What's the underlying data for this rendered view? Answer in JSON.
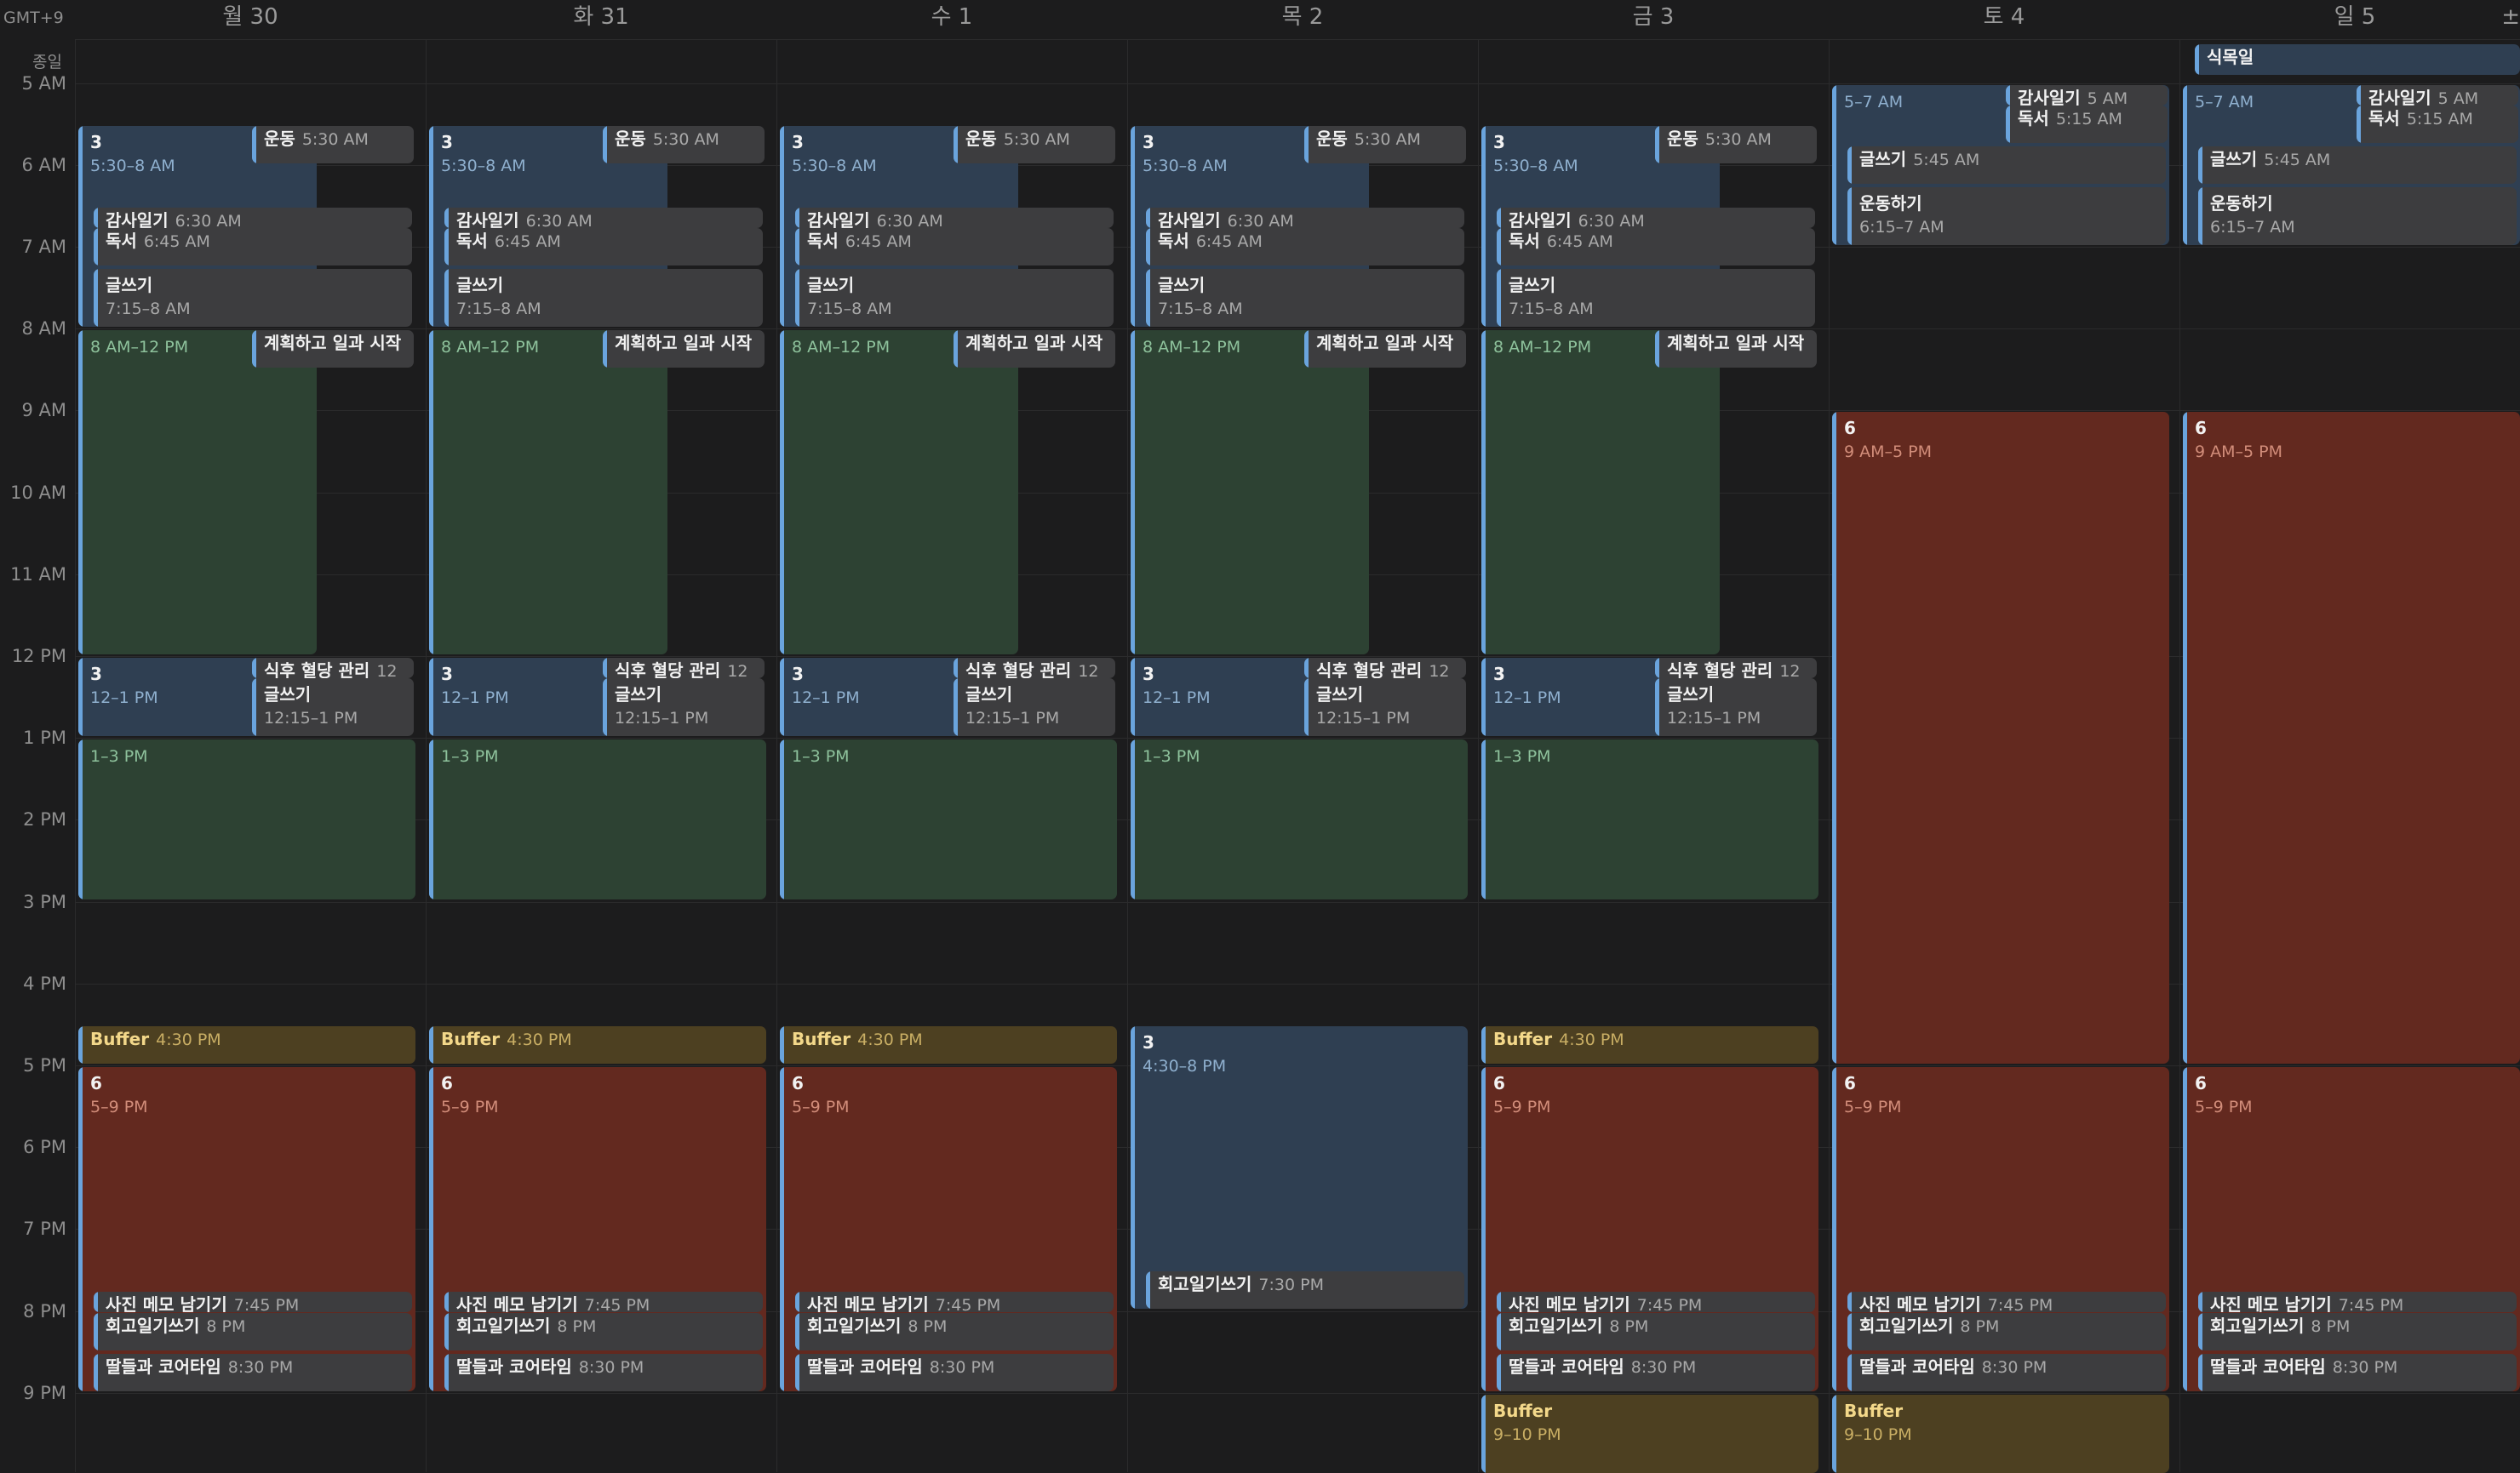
{
  "timezone_label": "GMT+9",
  "all_day_label": "종일",
  "plus_label": "±",
  "days": [
    {
      "label": "월 30"
    },
    {
      "label": "화 31"
    },
    {
      "label": "수 1"
    },
    {
      "label": "목 2"
    },
    {
      "label": "금 3"
    },
    {
      "label": "토 4"
    },
    {
      "label": "일 5"
    }
  ],
  "hours": [
    "5 AM",
    "6 AM",
    "7 AM",
    "8 AM",
    "9 AM",
    "10 AM",
    "11 AM",
    "12 PM",
    "1 PM",
    "2 PM",
    "3 PM",
    "4 PM",
    "5 PM",
    "6 PM",
    "7 PM",
    "8 PM",
    "9 PM"
  ],
  "all_day_events": [
    {
      "day": 6,
      "title": "식목일"
    }
  ],
  "events": [
    {
      "day": 0,
      "start": 5.5,
      "end": 8,
      "lane": 0,
      "lanes": 2,
      "color": "blue",
      "title": "3",
      "time": "5:30–8 AM",
      "style": "block"
    },
    {
      "day": 0,
      "start": 5.5,
      "end": 6,
      "lane": 1,
      "lanes": 2,
      "color": "gray",
      "title": "운동",
      "time": "5:30 AM",
      "style": "compact"
    },
    {
      "day": 0,
      "start": 6.5,
      "end": 6.75,
      "lane": "in",
      "color": "gray",
      "title": "감사일기",
      "time": "6:30 AM",
      "style": "compact"
    },
    {
      "day": 0,
      "start": 6.75,
      "end": 7.25,
      "lane": "in",
      "color": "gray",
      "title": "독서",
      "time": "6:45 AM",
      "style": "compact"
    },
    {
      "day": 0,
      "start": 7.25,
      "end": 8,
      "lane": "in",
      "color": "gray",
      "title": "글쓰기",
      "time": "7:15–8 AM",
      "style": "block"
    },
    {
      "day": 0,
      "start": 8,
      "end": 12,
      "lane": 0,
      "lanes": 2,
      "color": "green",
      "title": "",
      "time": "8 AM–12 PM",
      "style": "block"
    },
    {
      "day": 0,
      "start": 8,
      "end": 8.5,
      "lane": 1,
      "lanes": 2,
      "color": "gray",
      "title": "계획하고 일과 시작",
      "time": "",
      "style": "compact"
    },
    {
      "day": 0,
      "start": 12,
      "end": 13,
      "lane": 0,
      "lanes": 2,
      "color": "blue",
      "title": "3",
      "time": "12–1 PM",
      "style": "block"
    },
    {
      "day": 0,
      "start": 12,
      "end": 12.25,
      "lane": 1,
      "lanes": 2,
      "color": "gray",
      "title": "식후 혈당 관리",
      "time": "12",
      "style": "compact"
    },
    {
      "day": 0,
      "start": 12.25,
      "end": 13,
      "lane": 1,
      "lanes": 2,
      "color": "gray",
      "title": "글쓰기",
      "time": "12:15–1 PM",
      "style": "block"
    },
    {
      "day": 0,
      "start": 13,
      "end": 15,
      "lane": 0,
      "lanes": 1,
      "color": "green",
      "title": "",
      "time": "1–3 PM",
      "style": "block"
    },
    {
      "day": 0,
      "start": 16.5,
      "end": 17,
      "lane": 0,
      "lanes": 1,
      "color": "yellow",
      "title": "Buffer",
      "time": "4:30 PM",
      "style": "compact"
    },
    {
      "day": 0,
      "start": 17,
      "end": 21,
      "lane": 0,
      "lanes": 1,
      "color": "red",
      "title": "6",
      "time": "5–9 PM",
      "style": "block"
    },
    {
      "day": 0,
      "start": 19.75,
      "end": 20,
      "lane": "in",
      "color": "gray",
      "title": "사진 메모 남기기",
      "time": "7:45 PM",
      "style": "compact"
    },
    {
      "day": 0,
      "start": 20,
      "end": 20.5,
      "lane": "in",
      "color": "gray",
      "title": "회고일기쓰기",
      "time": "8 PM",
      "style": "compact"
    },
    {
      "day": 0,
      "start": 20.5,
      "end": 21,
      "lane": "in",
      "color": "gray",
      "title": "딸들과 코어타임",
      "time": "8:30 PM",
      "style": "compact"
    },
    {
      "day": 1,
      "start": 5.5,
      "end": 8,
      "lane": 0,
      "lanes": 2,
      "color": "blue",
      "title": "3",
      "time": "5:30–8 AM",
      "style": "block"
    },
    {
      "day": 1,
      "start": 5.5,
      "end": 6,
      "lane": 1,
      "lanes": 2,
      "color": "gray",
      "title": "운동",
      "time": "5:30 AM",
      "style": "compact"
    },
    {
      "day": 1,
      "start": 6.5,
      "end": 6.75,
      "lane": "in",
      "color": "gray",
      "title": "감사일기",
      "time": "6:30 AM",
      "style": "compact"
    },
    {
      "day": 1,
      "start": 6.75,
      "end": 7.25,
      "lane": "in",
      "color": "gray",
      "title": "독서",
      "time": "6:45 AM",
      "style": "compact"
    },
    {
      "day": 1,
      "start": 7.25,
      "end": 8,
      "lane": "in",
      "color": "gray",
      "title": "글쓰기",
      "time": "7:15–8 AM",
      "style": "block"
    },
    {
      "day": 1,
      "start": 8,
      "end": 12,
      "lane": 0,
      "lanes": 2,
      "color": "green",
      "title": "",
      "time": "8 AM–12 PM",
      "style": "block"
    },
    {
      "day": 1,
      "start": 8,
      "end": 8.5,
      "lane": 1,
      "lanes": 2,
      "color": "gray",
      "title": "계획하고 일과 시작",
      "time": "",
      "style": "compact"
    },
    {
      "day": 1,
      "start": 12,
      "end": 13,
      "lane": 0,
      "lanes": 2,
      "color": "blue",
      "title": "3",
      "time": "12–1 PM",
      "style": "block"
    },
    {
      "day": 1,
      "start": 12,
      "end": 12.25,
      "lane": 1,
      "lanes": 2,
      "color": "gray",
      "title": "식후 혈당 관리",
      "time": "12",
      "style": "compact"
    },
    {
      "day": 1,
      "start": 12.25,
      "end": 13,
      "lane": 1,
      "lanes": 2,
      "color": "gray",
      "title": "글쓰기",
      "time": "12:15–1 PM",
      "style": "block"
    },
    {
      "day": 1,
      "start": 13,
      "end": 15,
      "lane": 0,
      "lanes": 1,
      "color": "green",
      "title": "",
      "time": "1–3 PM",
      "style": "block"
    },
    {
      "day": 1,
      "start": 16.5,
      "end": 17,
      "lane": 0,
      "lanes": 1,
      "color": "yellow",
      "title": "Buffer",
      "time": "4:30 PM",
      "style": "compact"
    },
    {
      "day": 1,
      "start": 17,
      "end": 21,
      "lane": 0,
      "lanes": 1,
      "color": "red",
      "title": "6",
      "time": "5–9 PM",
      "style": "block"
    },
    {
      "day": 1,
      "start": 19.75,
      "end": 20,
      "lane": "in",
      "color": "gray",
      "title": "사진 메모 남기기",
      "time": "7:45 PM",
      "style": "compact"
    },
    {
      "day": 1,
      "start": 20,
      "end": 20.5,
      "lane": "in",
      "color": "gray",
      "title": "회고일기쓰기",
      "time": "8 PM",
      "style": "compact"
    },
    {
      "day": 1,
      "start": 20.5,
      "end": 21,
      "lane": "in",
      "color": "gray",
      "title": "딸들과 코어타임",
      "time": "8:30 PM",
      "style": "compact"
    },
    {
      "day": 2,
      "start": 5.5,
      "end": 8,
      "lane": 0,
      "lanes": 2,
      "color": "blue",
      "title": "3",
      "time": "5:30–8 AM",
      "style": "block"
    },
    {
      "day": 2,
      "start": 5.5,
      "end": 6,
      "lane": 1,
      "lanes": 2,
      "color": "gray",
      "title": "운동",
      "time": "5:30 AM",
      "style": "compact"
    },
    {
      "day": 2,
      "start": 6.5,
      "end": 6.75,
      "lane": "in",
      "color": "gray",
      "title": "감사일기",
      "time": "6:30 AM",
      "style": "compact"
    },
    {
      "day": 2,
      "start": 6.75,
      "end": 7.25,
      "lane": "in",
      "color": "gray",
      "title": "독서",
      "time": "6:45 AM",
      "style": "compact"
    },
    {
      "day": 2,
      "start": 7.25,
      "end": 8,
      "lane": "in",
      "color": "gray",
      "title": "글쓰기",
      "time": "7:15–8 AM",
      "style": "block"
    },
    {
      "day": 2,
      "start": 8,
      "end": 12,
      "lane": 0,
      "lanes": 2,
      "color": "green",
      "title": "",
      "time": "8 AM–12 PM",
      "style": "block"
    },
    {
      "day": 2,
      "start": 8,
      "end": 8.5,
      "lane": 1,
      "lanes": 2,
      "color": "gray",
      "title": "계획하고 일과 시작",
      "time": "",
      "style": "compact"
    },
    {
      "day": 2,
      "start": 12,
      "end": 13,
      "lane": 0,
      "lanes": 2,
      "color": "blue",
      "title": "3",
      "time": "12–1 PM",
      "style": "block"
    },
    {
      "day": 2,
      "start": 12,
      "end": 12.25,
      "lane": 1,
      "lanes": 2,
      "color": "gray",
      "title": "식후 혈당 관리",
      "time": "12",
      "style": "compact"
    },
    {
      "day": 2,
      "start": 12.25,
      "end": 13,
      "lane": 1,
      "lanes": 2,
      "color": "gray",
      "title": "글쓰기",
      "time": "12:15–1 PM",
      "style": "block"
    },
    {
      "day": 2,
      "start": 13,
      "end": 15,
      "lane": 0,
      "lanes": 1,
      "color": "green",
      "title": "",
      "time": "1–3 PM",
      "style": "block"
    },
    {
      "day": 2,
      "start": 16.5,
      "end": 17,
      "lane": 0,
      "lanes": 1,
      "color": "yellow",
      "title": "Buffer",
      "time": "4:30 PM",
      "style": "compact"
    },
    {
      "day": 2,
      "start": 17,
      "end": 21,
      "lane": 0,
      "lanes": 1,
      "color": "red",
      "title": "6",
      "time": "5–9 PM",
      "style": "block"
    },
    {
      "day": 2,
      "start": 19.75,
      "end": 20,
      "lane": "in",
      "color": "gray",
      "title": "사진 메모 남기기",
      "time": "7:45 PM",
      "style": "compact"
    },
    {
      "day": 2,
      "start": 20,
      "end": 20.5,
      "lane": "in",
      "color": "gray",
      "title": "회고일기쓰기",
      "time": "8 PM",
      "style": "compact"
    },
    {
      "day": 2,
      "start": 20.5,
      "end": 21,
      "lane": "in",
      "color": "gray",
      "title": "딸들과 코어타임",
      "time": "8:30 PM",
      "style": "compact"
    },
    {
      "day": 3,
      "start": 5.5,
      "end": 8,
      "lane": 0,
      "lanes": 2,
      "color": "blue",
      "title": "3",
      "time": "5:30–8 AM",
      "style": "block"
    },
    {
      "day": 3,
      "start": 5.5,
      "end": 6,
      "lane": 1,
      "lanes": 2,
      "color": "gray",
      "title": "운동",
      "time": "5:30 AM",
      "style": "compact"
    },
    {
      "day": 3,
      "start": 6.5,
      "end": 6.75,
      "lane": "in",
      "color": "gray",
      "title": "감사일기",
      "time": "6:30 AM",
      "style": "compact"
    },
    {
      "day": 3,
      "start": 6.75,
      "end": 7.25,
      "lane": "in",
      "color": "gray",
      "title": "독서",
      "time": "6:45 AM",
      "style": "compact"
    },
    {
      "day": 3,
      "start": 7.25,
      "end": 8,
      "lane": "in",
      "color": "gray",
      "title": "글쓰기",
      "time": "7:15–8 AM",
      "style": "block"
    },
    {
      "day": 3,
      "start": 8,
      "end": 12,
      "lane": 0,
      "lanes": 2,
      "color": "green",
      "title": "",
      "time": "8 AM–12 PM",
      "style": "block"
    },
    {
      "day": 3,
      "start": 8,
      "end": 8.5,
      "lane": 1,
      "lanes": 2,
      "color": "gray",
      "title": "계획하고 일과 시작",
      "time": "",
      "style": "compact"
    },
    {
      "day": 3,
      "start": 12,
      "end": 13,
      "lane": 0,
      "lanes": 2,
      "color": "blue",
      "title": "3",
      "time": "12–1 PM",
      "style": "block"
    },
    {
      "day": 3,
      "start": 12,
      "end": 12.25,
      "lane": 1,
      "lanes": 2,
      "color": "gray",
      "title": "식후 혈당 관리",
      "time": "12",
      "style": "compact"
    },
    {
      "day": 3,
      "start": 12.25,
      "end": 13,
      "lane": 1,
      "lanes": 2,
      "color": "gray",
      "title": "글쓰기",
      "time": "12:15–1 PM",
      "style": "block"
    },
    {
      "day": 3,
      "start": 13,
      "end": 15,
      "lane": 0,
      "lanes": 1,
      "color": "green",
      "title": "",
      "time": "1–3 PM",
      "style": "block"
    },
    {
      "day": 3,
      "start": 16.5,
      "end": 20,
      "lane": 0,
      "lanes": 1,
      "color": "blue",
      "title": "3",
      "time": "4:30–8 PM",
      "style": "block"
    },
    {
      "day": 3,
      "start": 19.5,
      "end": 20,
      "lane": "in",
      "color": "gray",
      "title": "회고일기쓰기",
      "time": "7:30 PM",
      "style": "compact"
    },
    {
      "day": 4,
      "start": 5.5,
      "end": 8,
      "lane": 0,
      "lanes": 2,
      "color": "blue",
      "title": "3",
      "time": "5:30–8 AM",
      "style": "block"
    },
    {
      "day": 4,
      "start": 5.5,
      "end": 6,
      "lane": 1,
      "lanes": 2,
      "color": "gray",
      "title": "운동",
      "time": "5:30 AM",
      "style": "compact"
    },
    {
      "day": 4,
      "start": 6.5,
      "end": 6.75,
      "lane": "in",
      "color": "gray",
      "title": "감사일기",
      "time": "6:30 AM",
      "style": "compact"
    },
    {
      "day": 4,
      "start": 6.75,
      "end": 7.25,
      "lane": "in",
      "color": "gray",
      "title": "독서",
      "time": "6:45 AM",
      "style": "compact"
    },
    {
      "day": 4,
      "start": 7.25,
      "end": 8,
      "lane": "in",
      "color": "gray",
      "title": "글쓰기",
      "time": "7:15–8 AM",
      "style": "block"
    },
    {
      "day": 4,
      "start": 8,
      "end": 12,
      "lane": 0,
      "lanes": 2,
      "color": "green",
      "title": "",
      "time": "8 AM–12 PM",
      "style": "block"
    },
    {
      "day": 4,
      "start": 8,
      "end": 8.5,
      "lane": 1,
      "lanes": 2,
      "color": "gray",
      "title": "계획하고 일과 시작",
      "time": "",
      "style": "compact"
    },
    {
      "day": 4,
      "start": 12,
      "end": 13,
      "lane": 0,
      "lanes": 2,
      "color": "blue",
      "title": "3",
      "time": "12–1 PM",
      "style": "block"
    },
    {
      "day": 4,
      "start": 12,
      "end": 12.25,
      "lane": 1,
      "lanes": 2,
      "color": "gray",
      "title": "식후 혈당 관리",
      "time": "12",
      "style": "compact"
    },
    {
      "day": 4,
      "start": 12.25,
      "end": 13,
      "lane": 1,
      "lanes": 2,
      "color": "gray",
      "title": "글쓰기",
      "time": "12:15–1 PM",
      "style": "block"
    },
    {
      "day": 4,
      "start": 13,
      "end": 15,
      "lane": 0,
      "lanes": 1,
      "color": "green",
      "title": "",
      "time": "1–3 PM",
      "style": "block"
    },
    {
      "day": 4,
      "start": 16.5,
      "end": 17,
      "lane": 0,
      "lanes": 1,
      "color": "yellow",
      "title": "Buffer",
      "time": "4:30 PM",
      "style": "compact"
    },
    {
      "day": 4,
      "start": 17,
      "end": 21,
      "lane": 0,
      "lanes": 1,
      "color": "red",
      "title": "6",
      "time": "5–9 PM",
      "style": "block"
    },
    {
      "day": 4,
      "start": 19.75,
      "end": 20,
      "lane": "in",
      "color": "gray",
      "title": "사진 메모 남기기",
      "time": "7:45 PM",
      "style": "compact"
    },
    {
      "day": 4,
      "start": 20,
      "end": 20.5,
      "lane": "in",
      "color": "gray",
      "title": "회고일기쓰기",
      "time": "8 PM",
      "style": "compact"
    },
    {
      "day": 4,
      "start": 20.5,
      "end": 21,
      "lane": "in",
      "color": "gray",
      "title": "딸들과 코어타임",
      "time": "8:30 PM",
      "style": "compact"
    },
    {
      "day": 4,
      "start": 21,
      "end": 22,
      "lane": 0,
      "lanes": 1,
      "color": "yellow",
      "title": "Buffer",
      "time": "9–10 PM",
      "style": "block"
    },
    {
      "day": 5,
      "start": 5,
      "end": 7,
      "lane": 0,
      "lanes": 1,
      "color": "blue",
      "title": "",
      "time": "5–7 AM",
      "style": "block"
    },
    {
      "day": 5,
      "start": 5,
      "end": 5.25,
      "lane": "right",
      "color": "gray",
      "title": "감사일기",
      "time": "5 AM",
      "style": "compact"
    },
    {
      "day": 5,
      "start": 5.25,
      "end": 5.75,
      "lane": "right",
      "color": "gray",
      "title": "독서",
      "time": "5:15 AM",
      "style": "compact"
    },
    {
      "day": 5,
      "start": 5.75,
      "end": 6.25,
      "lane": "in",
      "color": "gray",
      "title": "글쓰기",
      "time": "5:45 AM",
      "style": "compact"
    },
    {
      "day": 5,
      "start": 6.25,
      "end": 7,
      "lane": "in",
      "color": "gray",
      "title": "운동하기",
      "time": "6:15–7 AM",
      "style": "block"
    },
    {
      "day": 5,
      "start": 9,
      "end": 17,
      "lane": 0,
      "lanes": 1,
      "color": "red",
      "title": "6",
      "time": "9 AM–5 PM",
      "style": "block"
    },
    {
      "day": 5,
      "start": 17,
      "end": 21,
      "lane": 0,
      "lanes": 1,
      "color": "red",
      "title": "6",
      "time": "5–9 PM",
      "style": "block"
    },
    {
      "day": 5,
      "start": 19.75,
      "end": 20,
      "lane": "in",
      "color": "gray",
      "title": "사진 메모 남기기",
      "time": "7:45 PM",
      "style": "compact"
    },
    {
      "day": 5,
      "start": 20,
      "end": 20.5,
      "lane": "in",
      "color": "gray",
      "title": "회고일기쓰기",
      "time": "8 PM",
      "style": "compact"
    },
    {
      "day": 5,
      "start": 20.5,
      "end": 21,
      "lane": "in",
      "color": "gray",
      "title": "딸들과 코어타임",
      "time": "8:30 PM",
      "style": "compact"
    },
    {
      "day": 5,
      "start": 21,
      "end": 22,
      "lane": 0,
      "lanes": 1,
      "color": "yellow",
      "title": "Buffer",
      "time": "9–10 PM",
      "style": "block"
    },
    {
      "day": 6,
      "start": 5,
      "end": 7,
      "lane": 0,
      "lanes": 1,
      "color": "blue",
      "title": "",
      "time": "5–7 AM",
      "style": "block"
    },
    {
      "day": 6,
      "start": 5,
      "end": 5.25,
      "lane": "right",
      "color": "gray",
      "title": "감사일기",
      "time": "5 AM",
      "style": "compact"
    },
    {
      "day": 6,
      "start": 5.25,
      "end": 5.75,
      "lane": "right",
      "color": "gray",
      "title": "독서",
      "time": "5:15 AM",
      "style": "compact"
    },
    {
      "day": 6,
      "start": 5.75,
      "end": 6.25,
      "lane": "in",
      "color": "gray",
      "title": "글쓰기",
      "time": "5:45 AM",
      "style": "compact"
    },
    {
      "day": 6,
      "start": 6.25,
      "end": 7,
      "lane": "in",
      "color": "gray",
      "title": "운동하기",
      "time": "6:15–7 AM",
      "style": "block"
    },
    {
      "day": 6,
      "start": 9,
      "end": 17,
      "lane": 0,
      "lanes": 1,
      "color": "red",
      "title": "6",
      "time": "9 AM–5 PM",
      "style": "block"
    },
    {
      "day": 6,
      "start": 17,
      "end": 21,
      "lane": 0,
      "lanes": 1,
      "color": "red",
      "title": "6",
      "time": "5–9 PM",
      "style": "block"
    },
    {
      "day": 6,
      "start": 19.75,
      "end": 20,
      "lane": "in",
      "color": "gray",
      "title": "사진 메모 남기기",
      "time": "7:45 PM",
      "style": "compact"
    },
    {
      "day": 6,
      "start": 20,
      "end": 20.5,
      "lane": "in",
      "color": "gray",
      "title": "회고일기쓰기",
      "time": "8 PM",
      "style": "compact"
    },
    {
      "day": 6,
      "start": 20.5,
      "end": 21,
      "lane": "in",
      "color": "gray",
      "title": "딸들과 코어타임",
      "time": "8:30 PM",
      "style": "compact"
    }
  ]
}
